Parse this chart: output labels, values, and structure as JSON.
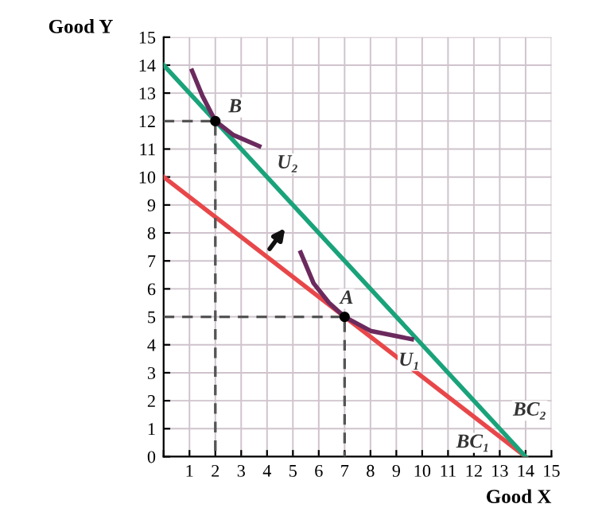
{
  "chart_data": {
    "type": "line",
    "xlabel": "Good X",
    "ylabel": "Good Y",
    "xlim": [
      0,
      15
    ],
    "ylim": [
      0,
      15
    ],
    "xticks": [
      {
        "value": 0,
        "label": null
      },
      1,
      2,
      3,
      4,
      5,
      6,
      7,
      8,
      9,
      10,
      11,
      12,
      13,
      14,
      15
    ],
    "yticks": [
      0,
      1,
      2,
      3,
      4,
      5,
      6,
      7,
      8,
      9,
      10,
      11,
      12,
      13,
      14,
      15
    ],
    "grid": true,
    "marker": "none",
    "series": [
      {
        "color": "#e8474a",
        "x": [
          0,
          14
        ],
        "values": [
          10,
          0
        ]
      },
      {
        "color": "#1aa37a",
        "x": [
          0,
          14
        ],
        "values": [
          14,
          0
        ]
      },
      {
        "color": "#6b2a5e",
        "x": [
          1.1,
          1.5,
          2,
          2.7,
          3.7
        ],
        "values": [
          13.8,
          12.9,
          12,
          11.5,
          11.1
        ]
      },
      {
        "color": "#6b2a5e",
        "x": [
          5.3,
          5.8,
          6.4,
          7,
          8,
          9.6
        ],
        "values": [
          7.3,
          6.2,
          5.5,
          5,
          4.5,
          4.2
        ]
      },
      {
        "color": "#555555",
        "line_style": "dashed",
        "x": [
          0,
          2,
          2
        ],
        "values": [
          12,
          12,
          0
        ]
      },
      {
        "color": "#555555",
        "line_style": "dashed",
        "x": [
          0,
          7,
          7
        ],
        "values": [
          5,
          5,
          0
        ]
      },
      {
        "type": "scatter",
        "marker": "circle",
        "color": "#000000",
        "x": [
          2,
          7
        ],
        "values": [
          12,
          5
        ]
      }
    ],
    "annotations": [
      {
        "text": "B",
        "x": 2,
        "y": 12
      },
      {
        "text": "A",
        "x": 7,
        "y": 5
      },
      {
        "text": "U₂",
        "x": 3.7,
        "y": 11.1
      },
      {
        "text": "U₁",
        "x": 9.6,
        "y": 4.2
      },
      {
        "text": "BC₁",
        "x": 12,
        "y": 1.43
      },
      {
        "text": "BC₂",
        "x": 13,
        "y": 1
      }
    ]
  }
}
